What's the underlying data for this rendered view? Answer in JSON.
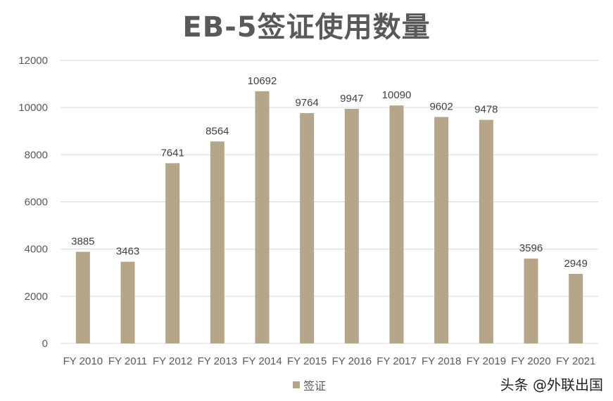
{
  "chart_data": {
    "type": "bar",
    "title": "EB-5签证使用数量",
    "categories": [
      "FY 2010",
      "FY 2011",
      "FY 2012",
      "FY 2013",
      "FY 2014",
      "FY 2015",
      "FY 2016",
      "FY 2017",
      "FY 2018",
      "FY 2019",
      "FY 2020",
      "FY 2021"
    ],
    "series": [
      {
        "name": "签证",
        "values": [
          3885,
          3463,
          7641,
          8564,
          10692,
          9764,
          9947,
          10090,
          9602,
          9478,
          3596,
          2949
        ],
        "color": "#b5a68a"
      }
    ],
    "ylim": [
      0,
      12000
    ],
    "yticks": [
      0,
      2000,
      4000,
      6000,
      8000,
      10000,
      12000
    ],
    "grid": true,
    "legend_position": "bottom",
    "data_labels": true
  },
  "watermark": "头条 @外联出国",
  "colors": {
    "grid": "#d9d9d9",
    "bar": "#b5a68a"
  }
}
